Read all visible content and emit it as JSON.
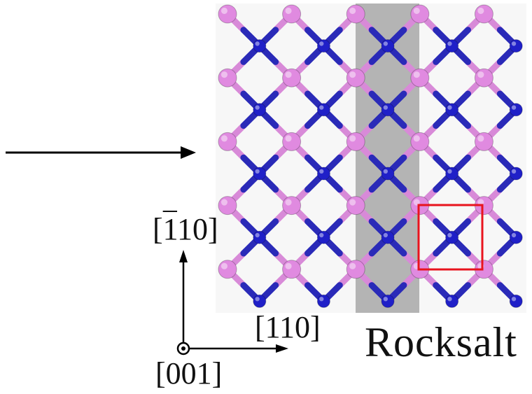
{
  "structure_name": "Rocksalt",
  "axes": {
    "vertical_label": {
      "prefix": "[",
      "bar": "1",
      "rest": "10]"
    },
    "horizontal_label": "[110]",
    "out_of_plane_label": "[001]"
  },
  "colors": {
    "anion_atom": "#e08ae0",
    "cation_atom": "#2020c8",
    "bond_light": "#d88ad8",
    "bond_dark": "#2a2ab8",
    "highlight_strip": "#a8a8a8",
    "unit_cell_box": "#e8141e",
    "panel_background": "#f7f7f7"
  },
  "icons": [
    "incident-arrow-icon",
    "axis-arrow-icon",
    "out-of-plane-dot-icon"
  ]
}
